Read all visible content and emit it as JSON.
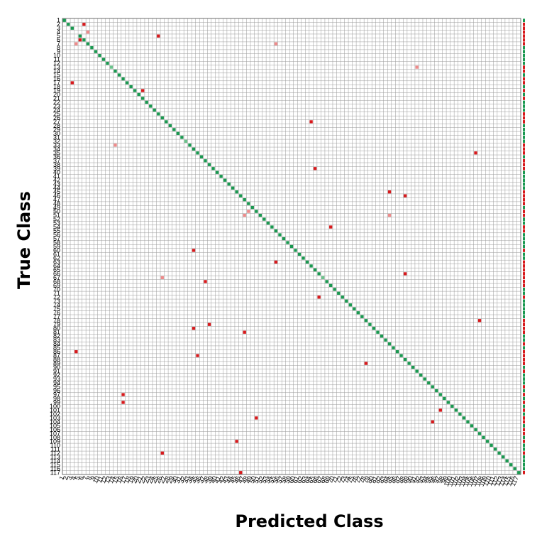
{
  "chart_data": {
    "type": "heatmap",
    "xlabel": "Predicted Class",
    "ylabel": "True Class",
    "num_classes": 117,
    "grid": true,
    "colors": {
      "correct": "#1a9850",
      "correct_light": "#6cc38c",
      "error": "#d7191c",
      "error_light": "#ee8a8a",
      "grid_line": "#9a9a9a",
      "summary_correct": "#1a9850",
      "summary_error": "#d7191c"
    },
    "diagonal_correct": [
      1,
      2,
      3,
      5,
      6,
      7,
      8,
      9,
      10,
      11,
      12,
      13,
      14,
      15,
      16,
      17,
      18,
      19,
      20,
      21,
      22,
      23,
      24,
      25,
      26,
      27,
      28,
      29,
      30,
      31,
      32,
      33,
      34,
      35,
      36,
      37,
      38,
      39,
      40,
      41,
      42,
      43,
      44,
      45,
      46,
      47,
      48,
      49,
      50,
      51,
      52,
      53,
      54,
      55,
      56,
      57,
      58,
      59,
      60,
      61,
      62,
      63,
      64,
      65,
      66,
      67,
      68,
      69,
      70,
      71,
      72,
      73,
      74,
      75,
      76,
      77,
      78,
      79,
      80,
      81,
      82,
      83,
      84,
      85,
      86,
      87,
      88,
      89,
      90,
      91,
      92,
      93,
      94,
      95,
      96,
      97,
      98,
      99,
      100,
      101,
      102,
      103,
      104,
      105,
      106,
      107,
      108,
      109,
      110,
      111,
      112,
      113,
      114,
      115,
      116,
      117
    ],
    "diagonal_light": [
      13,
      32,
      67
    ],
    "misclassifications": [
      {
        "true": 2,
        "predicted": 6,
        "shade": "dark"
      },
      {
        "true": 4,
        "predicted": 7,
        "shade": "light"
      },
      {
        "true": 5,
        "predicted": 25,
        "shade": "dark"
      },
      {
        "true": 6,
        "predicted": 5,
        "shade": "dark"
      },
      {
        "true": 7,
        "predicted": 4,
        "shade": "light"
      },
      {
        "true": 7,
        "predicted": 55,
        "shade": "light"
      },
      {
        "true": 13,
        "predicted": 91,
        "shade": "light"
      },
      {
        "true": 17,
        "predicted": 3,
        "shade": "dark"
      },
      {
        "true": 19,
        "predicted": 21,
        "shade": "dark"
      },
      {
        "true": 27,
        "predicted": 64,
        "shade": "dark"
      },
      {
        "true": 33,
        "predicted": 14,
        "shade": "light"
      },
      {
        "true": 35,
        "predicted": 106,
        "shade": "dark"
      },
      {
        "true": 39,
        "predicted": 65,
        "shade": "dark"
      },
      {
        "true": 45,
        "predicted": 84,
        "shade": "dark"
      },
      {
        "true": 46,
        "predicted": 88,
        "shade": "dark"
      },
      {
        "true": 50,
        "predicted": 48,
        "shade": "light"
      },
      {
        "true": 51,
        "predicted": 47,
        "shade": "light"
      },
      {
        "true": 51,
        "predicted": 84,
        "shade": "light"
      },
      {
        "true": 54,
        "predicted": 69,
        "shade": "dark"
      },
      {
        "true": 60,
        "predicted": 34,
        "shade": "dark"
      },
      {
        "true": 63,
        "predicted": 55,
        "shade": "dark"
      },
      {
        "true": 66,
        "predicted": 88,
        "shade": "dark"
      },
      {
        "true": 67,
        "predicted": 26,
        "shade": "light"
      },
      {
        "true": 68,
        "predicted": 37,
        "shade": "dark"
      },
      {
        "true": 72,
        "predicted": 66,
        "shade": "dark"
      },
      {
        "true": 78,
        "predicted": 107,
        "shade": "dark"
      },
      {
        "true": 79,
        "predicted": 38,
        "shade": "dark"
      },
      {
        "true": 80,
        "predicted": 34,
        "shade": "dark"
      },
      {
        "true": 81,
        "predicted": 47,
        "shade": "dark"
      },
      {
        "true": 86,
        "predicted": 4,
        "shade": "dark"
      },
      {
        "true": 87,
        "predicted": 35,
        "shade": "dark"
      },
      {
        "true": 89,
        "predicted": 78,
        "shade": "dark"
      },
      {
        "true": 97,
        "predicted": 16,
        "shade": "dark"
      },
      {
        "true": 99,
        "predicted": 16,
        "shade": "dark"
      },
      {
        "true": 101,
        "predicted": 97,
        "shade": "dark"
      },
      {
        "true": 103,
        "predicted": 50,
        "shade": "dark"
      },
      {
        "true": 104,
        "predicted": 95,
        "shade": "dark"
      },
      {
        "true": 109,
        "predicted": 45,
        "shade": "dark"
      },
      {
        "true": 112,
        "predicted": 26,
        "shade": "dark"
      },
      {
        "true": 117,
        "predicted": 46,
        "shade": "dark"
      }
    ],
    "summary_column": "per-class precision/recall strip, green = correct share, red = error share"
  }
}
